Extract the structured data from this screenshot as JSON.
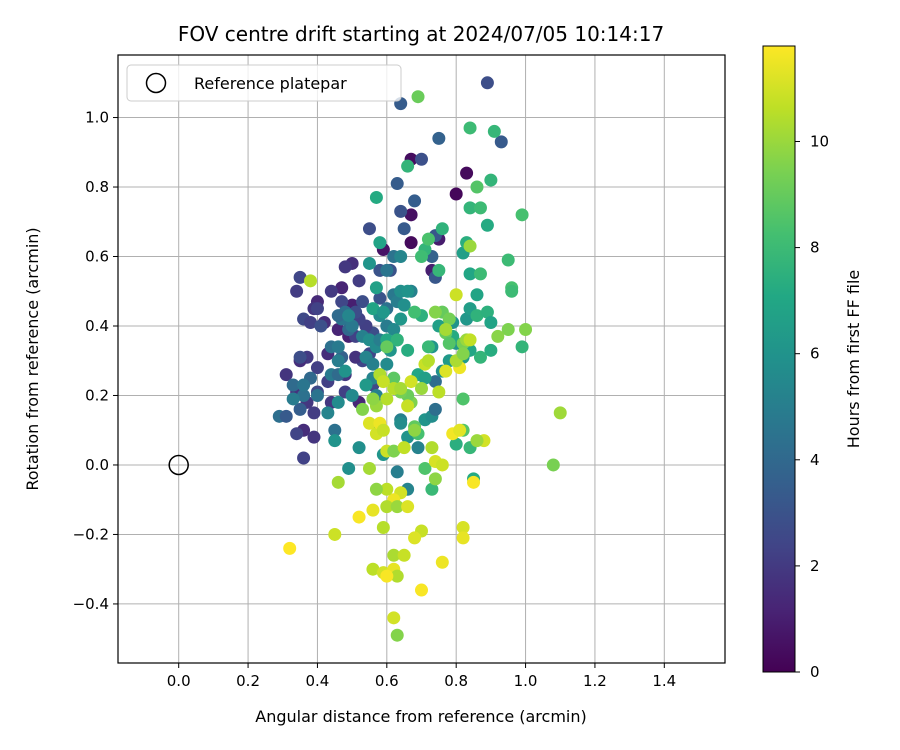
{
  "chart_data": {
    "type": "scatter",
    "title": "FOV centre drift starting at 2024/07/05 10:14:17",
    "xlabel": "Angular distance from reference (arcmin)",
    "ylabel": "Rotation from reference (arcmin)",
    "xlim": [
      -0.175,
      1.575
    ],
    "ylim": [
      -0.57,
      1.18
    ],
    "xticks": [
      0.0,
      0.2,
      0.4,
      0.6,
      0.8,
      1.0,
      1.2,
      1.4
    ],
    "xtick_labels": [
      "0.0",
      "0.2",
      "0.4",
      "0.6",
      "0.8",
      "1.0",
      "1.2",
      "1.4"
    ],
    "yticks": [
      -0.4,
      -0.2,
      0.0,
      0.2,
      0.4,
      0.6,
      0.8,
      1.0
    ],
    "ytick_labels": [
      "−0.4",
      "−0.2",
      "0.0",
      "0.2",
      "0.4",
      "0.6",
      "0.8",
      "1.0"
    ],
    "grid": true,
    "legend": {
      "placement": "top-left",
      "entries": [
        "Reference platepar"
      ]
    },
    "reference_point": {
      "x": 0.0,
      "y": 0.0
    },
    "colorbar": {
      "label": "Hours from first FF file",
      "range": [
        0,
        11.8
      ],
      "ticks": [
        0,
        2,
        4,
        6,
        8,
        10
      ],
      "tick_labels": [
        "0",
        "2",
        "4",
        "6",
        "8",
        "10"
      ],
      "colormap": "viridis"
    },
    "points": [
      [
        0.83,
        0.84,
        0.3
      ],
      [
        0.67,
        0.88,
        0.4
      ],
      [
        0.8,
        0.78,
        0.2
      ],
      [
        0.67,
        0.72,
        0.5
      ],
      [
        0.67,
        0.64,
        0.3
      ],
      [
        0.59,
        0.62,
        0.6
      ],
      [
        0.75,
        0.65,
        0.9
      ],
      [
        0.73,
        0.56,
        1.0
      ],
      [
        0.5,
        0.58,
        1.6
      ],
      [
        0.48,
        0.57,
        1.9
      ],
      [
        0.52,
        0.53,
        2.1
      ],
      [
        0.47,
        0.51,
        1.2
      ],
      [
        0.4,
        0.47,
        1.4
      ],
      [
        0.44,
        0.5,
        2.0
      ],
      [
        0.39,
        0.45,
        1.8
      ],
      [
        0.5,
        0.46,
        1.0
      ],
      [
        0.42,
        0.41,
        1.5
      ],
      [
        0.46,
        0.39,
        1.2
      ],
      [
        0.49,
        0.37,
        1.1
      ],
      [
        0.43,
        0.32,
        1.5
      ],
      [
        0.37,
        0.31,
        2.0
      ],
      [
        0.35,
        0.3,
        1.6
      ],
      [
        0.4,
        0.28,
        2.2
      ],
      [
        0.31,
        0.26,
        1.8
      ],
      [
        0.34,
        0.21,
        1.7
      ],
      [
        0.37,
        0.18,
        1.9
      ],
      [
        0.39,
        0.15,
        2.1
      ],
      [
        0.36,
        0.1,
        1.5
      ],
      [
        0.34,
        0.09,
        2.4
      ],
      [
        0.39,
        0.08,
        1.8
      ],
      [
        0.36,
        0.02,
        2.3
      ],
      [
        0.44,
        0.18,
        1.9
      ],
      [
        0.52,
        0.18,
        1.3
      ],
      [
        0.48,
        0.21,
        2.2
      ],
      [
        0.4,
        0.21,
        2.6
      ],
      [
        0.43,
        0.24,
        2.2
      ],
      [
        0.48,
        0.26,
        1.9
      ],
      [
        0.56,
        0.23,
        2.6
      ],
      [
        0.53,
        0.3,
        2.4
      ],
      [
        0.51,
        0.31,
        1.7
      ],
      [
        0.55,
        0.32,
        2.5
      ],
      [
        0.51,
        0.37,
        2.3
      ],
      [
        0.56,
        0.38,
        2.8
      ],
      [
        0.54,
        0.4,
        2.2
      ],
      [
        0.52,
        0.42,
        2.3
      ],
      [
        0.51,
        0.44,
        2.7
      ],
      [
        0.47,
        0.47,
        2.5
      ],
      [
        0.53,
        0.47,
        2.8
      ],
      [
        0.58,
        0.48,
        3.0
      ],
      [
        0.61,
        0.56,
        3.0
      ],
      [
        0.58,
        0.56,
        3.0
      ],
      [
        0.55,
        0.68,
        2.8
      ],
      [
        0.64,
        0.73,
        3.0
      ],
      [
        0.65,
        0.68,
        3.3
      ],
      [
        0.63,
        0.81,
        3.4
      ],
      [
        0.7,
        0.88,
        2.9
      ],
      [
        0.64,
        1.04,
        3.4
      ],
      [
        0.75,
        0.94,
        3.7
      ],
      [
        0.68,
        0.76,
        3.5
      ],
      [
        0.74,
        0.66,
        3.2
      ],
      [
        0.73,
        0.6,
        3.7
      ],
      [
        0.74,
        0.54,
        3.2
      ],
      [
        0.89,
        1.1,
        2.8
      ],
      [
        0.93,
        0.93,
        3.3
      ],
      [
        0.35,
        0.54,
        2.5
      ],
      [
        0.34,
        0.5,
        2.1
      ],
      [
        0.4,
        0.45,
        2.3
      ],
      [
        0.36,
        0.42,
        2.6
      ],
      [
        0.38,
        0.41,
        2.2
      ],
      [
        0.41,
        0.4,
        2.9
      ],
      [
        0.35,
        0.31,
        2.8
      ],
      [
        0.33,
        0.23,
        4.1
      ],
      [
        0.29,
        0.14,
        4.3
      ],
      [
        0.31,
        0.14,
        3.3
      ],
      [
        0.35,
        0.16,
        3.5
      ],
      [
        0.38,
        0.25,
        4.0
      ],
      [
        0.36,
        0.2,
        4.4
      ],
      [
        0.4,
        0.2,
        4.5
      ],
      [
        0.36,
        0.23,
        4.6
      ],
      [
        0.33,
        0.19,
        4.9
      ],
      [
        0.44,
        0.26,
        4.8
      ],
      [
        0.46,
        0.26,
        4.1
      ],
      [
        0.47,
        0.31,
        3.7
      ],
      [
        0.44,
        0.34,
        4.4
      ],
      [
        0.46,
        0.34,
        4.8
      ],
      [
        0.49,
        0.39,
        4.0
      ],
      [
        0.48,
        0.44,
        4.3
      ],
      [
        0.47,
        0.42,
        4.6
      ],
      [
        0.46,
        0.43,
        4.1
      ],
      [
        0.5,
        0.4,
        4.7
      ],
      [
        0.49,
        0.43,
        5.4
      ],
      [
        0.53,
        0.37,
        5.1
      ],
      [
        0.55,
        0.36,
        5.7
      ],
      [
        0.54,
        0.31,
        5.3
      ],
      [
        0.56,
        0.29,
        5.1
      ],
      [
        0.57,
        0.34,
        5.6
      ],
      [
        0.58,
        0.36,
        5.0
      ],
      [
        0.6,
        0.4,
        4.9
      ],
      [
        0.58,
        0.43,
        5.6
      ],
      [
        0.6,
        0.45,
        4.4
      ],
      [
        0.62,
        0.49,
        4.7
      ],
      [
        0.63,
        0.47,
        5.0
      ],
      [
        0.6,
        0.56,
        4.6
      ],
      [
        0.62,
        0.6,
        4.5
      ],
      [
        0.64,
        0.6,
        5.4
      ],
      [
        0.67,
        0.5,
        5.2
      ],
      [
        0.64,
        0.5,
        5.8
      ],
      [
        0.66,
        0.5,
        6.0
      ],
      [
        0.65,
        0.46,
        5.8
      ],
      [
        0.64,
        0.42,
        6.2
      ],
      [
        0.62,
        0.39,
        5.5
      ],
      [
        0.63,
        0.36,
        6.3
      ],
      [
        0.61,
        0.33,
        6.1
      ],
      [
        0.6,
        0.29,
        5.6
      ],
      [
        0.58,
        0.26,
        6.3
      ],
      [
        0.56,
        0.25,
        5.3
      ],
      [
        0.54,
        0.23,
        6.3
      ],
      [
        0.57,
        0.2,
        5.2
      ],
      [
        0.5,
        0.2,
        5.5
      ],
      [
        0.48,
        0.27,
        6.0
      ],
      [
        0.46,
        0.3,
        5.0
      ],
      [
        0.46,
        0.18,
        5.6
      ],
      [
        0.43,
        0.15,
        5.3
      ],
      [
        0.45,
        0.1,
        4.4
      ],
      [
        0.45,
        0.07,
        6.0
      ],
      [
        0.52,
        0.05,
        5.8
      ],
      [
        0.49,
        -0.01,
        5.8
      ],
      [
        0.58,
        0.1,
        5.4
      ],
      [
        0.59,
        0.03,
        6.1
      ],
      [
        0.64,
        0.13,
        5.1
      ],
      [
        0.64,
        0.12,
        5.7
      ],
      [
        0.66,
        0.08,
        6.0
      ],
      [
        0.63,
        -0.02,
        5.0
      ],
      [
        0.66,
        -0.07,
        5.3
      ],
      [
        0.69,
        0.05,
        5.2
      ],
      [
        0.71,
        0.13,
        6.1
      ],
      [
        0.73,
        0.14,
        5.7
      ],
      [
        0.74,
        0.16,
        4.3
      ],
      [
        0.74,
        0.24,
        4.2
      ],
      [
        0.76,
        0.27,
        5.9
      ],
      [
        0.78,
        0.3,
        6.3
      ],
      [
        0.73,
        0.34,
        6.1
      ],
      [
        0.75,
        0.4,
        6.6
      ],
      [
        0.79,
        0.41,
        6.0
      ],
      [
        0.8,
        0.35,
        6.2
      ],
      [
        0.82,
        0.31,
        6.4
      ],
      [
        0.84,
        0.33,
        7.0
      ],
      [
        0.79,
        0.37,
        7.2
      ],
      [
        0.83,
        0.42,
        6.2
      ],
      [
        0.84,
        0.45,
        6.5
      ],
      [
        0.84,
        0.55,
        7.0
      ],
      [
        0.86,
        0.49,
        6.9
      ],
      [
        0.86,
        0.43,
        7.6
      ],
      [
        0.89,
        0.44,
        7.5
      ],
      [
        0.9,
        0.41,
        6.8
      ],
      [
        0.9,
        0.33,
        7.3
      ],
      [
        0.87,
        0.31,
        7.7
      ],
      [
        0.82,
        0.61,
        6.6
      ],
      [
        0.83,
        0.64,
        7.4
      ],
      [
        0.89,
        0.69,
        7.2
      ],
      [
        0.84,
        0.74,
        7.7
      ],
      [
        0.87,
        0.74,
        8.0
      ],
      [
        0.9,
        0.82,
        7.7
      ],
      [
        0.84,
        0.97,
        8.0
      ],
      [
        0.91,
        0.96,
        7.8
      ],
      [
        0.99,
        0.72,
        8.3
      ],
      [
        0.95,
        0.59,
        8.0
      ],
      [
        0.96,
        0.51,
        8.3
      ],
      [
        0.96,
        0.5,
        8.0
      ],
      [
        0.99,
        0.34,
        7.7
      ],
      [
        0.87,
        0.55,
        8.0
      ],
      [
        0.75,
        0.56,
        7.8
      ],
      [
        0.76,
        0.68,
        7.6
      ],
      [
        0.71,
        0.62,
        7.7
      ],
      [
        0.72,
        0.65,
        8.4
      ],
      [
        0.7,
        0.6,
        8.1
      ],
      [
        0.66,
        0.86,
        7.7
      ],
      [
        0.57,
        0.77,
        7.2
      ],
      [
        0.58,
        0.64,
        6.8
      ],
      [
        0.55,
        0.58,
        6.1
      ],
      [
        0.57,
        0.51,
        6.7
      ],
      [
        0.56,
        0.45,
        6.9
      ],
      [
        0.59,
        0.44,
        6.2
      ],
      [
        0.6,
        0.36,
        7.1
      ],
      [
        0.63,
        0.36,
        7.6
      ],
      [
        0.66,
        0.33,
        7.3
      ],
      [
        0.69,
        0.26,
        7.0
      ],
      [
        0.71,
        0.25,
        6.6
      ],
      [
        0.72,
        0.34,
        7.9
      ],
      [
        0.7,
        0.43,
        7.5
      ],
      [
        0.68,
        0.44,
        8.2
      ],
      [
        0.76,
        0.44,
        9.0
      ],
      [
        0.78,
        0.42,
        9.3
      ],
      [
        0.77,
        0.38,
        9.0
      ],
      [
        0.78,
        0.35,
        8.6
      ],
      [
        0.82,
        0.35,
        9.4
      ],
      [
        0.82,
        0.19,
        8.5
      ],
      [
        0.8,
        0.06,
        7.4
      ],
      [
        0.82,
        0.1,
        8.6
      ],
      [
        0.84,
        0.05,
        7.8
      ],
      [
        0.85,
        -0.04,
        7.2
      ],
      [
        0.73,
        -0.07,
        7.9
      ],
      [
        0.71,
        -0.01,
        8.5
      ],
      [
        0.69,
        0.09,
        8.3
      ],
      [
        0.68,
        0.11,
        8.9
      ],
      [
        0.67,
        0.18,
        9.5
      ],
      [
        0.66,
        0.2,
        9.1
      ],
      [
        0.64,
        0.21,
        9.3
      ],
      [
        0.62,
        0.25,
        8.8
      ],
      [
        0.6,
        0.34,
        9.0
      ],
      [
        0.58,
        0.26,
        10.4
      ],
      [
        0.59,
        0.24,
        10.8
      ],
      [
        0.62,
        0.22,
        10.5
      ],
      [
        0.64,
        0.22,
        10.2
      ],
      [
        0.66,
        0.17,
        10.8
      ],
      [
        0.67,
        0.24,
        11.0
      ],
      [
        0.7,
        0.22,
        10.0
      ],
      [
        0.71,
        0.29,
        10.8
      ],
      [
        0.72,
        0.3,
        10.5
      ],
      [
        0.75,
        0.21,
        10.6
      ],
      [
        0.77,
        0.27,
        11.2
      ],
      [
        0.81,
        0.28,
        11.5
      ],
      [
        0.8,
        0.3,
        10.3
      ],
      [
        0.83,
        0.36,
        10.0
      ],
      [
        0.82,
        0.32,
        9.6
      ],
      [
        0.84,
        0.36,
        10.7
      ],
      [
        0.8,
        0.49,
        10.9
      ],
      [
        0.84,
        0.63,
        10.0
      ],
      [
        0.69,
        1.06,
        9.1
      ],
      [
        0.86,
        0.8,
        8.6
      ],
      [
        0.77,
        0.39,
        10.2
      ],
      [
        0.74,
        0.44,
        9.6
      ],
      [
        0.6,
        0.19,
        10.5
      ],
      [
        0.57,
        0.17,
        10.0
      ],
      [
        0.56,
        0.19,
        9.8
      ],
      [
        0.53,
        0.16,
        9.6
      ],
      [
        0.55,
        0.12,
        11.2
      ],
      [
        0.57,
        0.09,
        11.0
      ],
      [
        0.58,
        0.12,
        11.5
      ],
      [
        0.59,
        0.1,
        10.8
      ],
      [
        0.6,
        0.04,
        10.9
      ],
      [
        0.62,
        0.04,
        9.5
      ],
      [
        0.65,
        0.05,
        10.7
      ],
      [
        0.68,
        0.1,
        9.8
      ],
      [
        0.73,
        0.05,
        10.4
      ],
      [
        0.74,
        0.01,
        11.1
      ],
      [
        0.76,
        0.0,
        10.9
      ],
      [
        0.79,
        0.09,
        11.6
      ],
      [
        0.81,
        0.1,
        11.3
      ],
      [
        0.85,
        -0.05,
        11.7
      ],
      [
        0.88,
        0.07,
        11.0
      ],
      [
        0.74,
        -0.04,
        9.8
      ],
      [
        0.64,
        -0.08,
        11.0
      ],
      [
        0.62,
        -0.1,
        11.5
      ],
      [
        0.6,
        -0.12,
        10.4
      ],
      [
        0.63,
        -0.12,
        10.0
      ],
      [
        0.66,
        -0.12,
        11.2
      ],
      [
        0.6,
        -0.07,
        10.6
      ],
      [
        0.55,
        -0.01,
        10.2
      ],
      [
        0.57,
        -0.07,
        9.8
      ],
      [
        0.56,
        -0.13,
        11.4
      ],
      [
        0.52,
        -0.15,
        11.7
      ],
      [
        0.59,
        -0.18,
        10.5
      ],
      [
        0.7,
        -0.19,
        10.8
      ],
      [
        0.68,
        -0.21,
        11.2
      ],
      [
        0.82,
        -0.18,
        11.1
      ],
      [
        0.82,
        -0.21,
        11.4
      ],
      [
        0.76,
        -0.28,
        11.5
      ],
      [
        0.7,
        -0.36,
        11.7
      ],
      [
        0.62,
        -0.26,
        10.3
      ],
      [
        0.65,
        -0.26,
        10.8
      ],
      [
        0.56,
        -0.3,
        10.6
      ],
      [
        0.59,
        -0.31,
        11.0
      ],
      [
        0.62,
        -0.3,
        11.4
      ],
      [
        0.63,
        -0.32,
        10.4
      ],
      [
        0.6,
        -0.32,
        11.7
      ],
      [
        0.62,
        -0.44,
        11.0
      ],
      [
        0.63,
        -0.49,
        9.6
      ],
      [
        0.45,
        -0.2,
        10.9
      ],
      [
        0.46,
        -0.05,
        10.2
      ],
      [
        0.32,
        -0.24,
        11.8
      ],
      [
        0.38,
        0.53,
        10.5
      ],
      [
        1.1,
        0.15,
        10.1
      ],
      [
        1.08,
        0.0,
        9.4
      ],
      [
        1.0,
        0.39,
        9.6
      ],
      [
        0.95,
        0.39,
        9.5
      ],
      [
        0.92,
        0.37,
        9.7
      ],
      [
        0.86,
        0.07,
        10.0
      ]
    ]
  }
}
